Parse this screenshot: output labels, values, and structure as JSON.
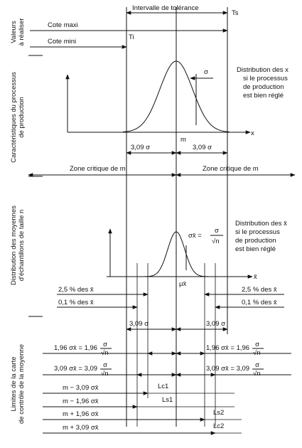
{
  "header": {
    "interval": "Intervalle de tolérance",
    "ts": "Ts",
    "cote_maxi": "Cote maxi",
    "cote_mini": "Cote mini",
    "ti": "Ti"
  },
  "side_labels": {
    "valeurs": [
      "Valeurs",
      "à réaliser"
    ],
    "caracteristiques": [
      "Caractéristiques du processus",
      "de production"
    ],
    "distribution": [
      "Distribution des moyennes",
      "d'échantillons de taille n"
    ],
    "limites": [
      "Limites de la carte",
      "de contrôle de la moyenne"
    ]
  },
  "process": {
    "caption": [
      "Distribution des x",
      "si le processus",
      "de production",
      "est bien réglé"
    ],
    "sigma": "σ",
    "m": "m",
    "axis": "x",
    "left_span": "3,09 σ",
    "right_span": "3,09 σ",
    "zone_left": "Zone critique de m",
    "zone_right": "Zone critique de m"
  },
  "means": {
    "caption": [
      "Distribution des x̄",
      "si le processus",
      "de production",
      "est bien réglé"
    ],
    "formula": {
      "lhs": "σx̄ =",
      "num": "σ",
      "den": "√n"
    },
    "axis": "x̄",
    "mu": "μx̄",
    "pct_25_left": "2,5 % des x̄",
    "pct_25_right": "2,5 % des x̄",
    "pct_01_left": "0,1 % des x̄",
    "pct_01_right": "0,1 % des x̄",
    "left_span": "3,09 σ",
    "right_span": "3,09 σ"
  },
  "limits": {
    "r196_left": {
      "lhs": "1,96 σx̄ = 1,96",
      "num": "σ",
      "den": "√n"
    },
    "r196_right": {
      "lhs": "1,96 σx̄ = 1,96",
      "num": "σ",
      "den": "√n"
    },
    "r309_left": {
      "lhs": "3,09 σx̄ = 3,09",
      "num": "σ",
      "den": "√n"
    },
    "r309_right": {
      "lhs": "3,09 σx̄ = 3,09",
      "num": "σ",
      "den": "√n"
    },
    "rows": [
      {
        "label": "m − 3,09 σx̄",
        "tag": "Lc1"
      },
      {
        "label": "m − 1,96 σx̄",
        "tag": "Ls1"
      },
      {
        "label": "m + 1,96 σx̄",
        "tag": "Ls2"
      },
      {
        "label": "m + 3,09 σx̄",
        "tag": "Lc2"
      }
    ]
  }
}
